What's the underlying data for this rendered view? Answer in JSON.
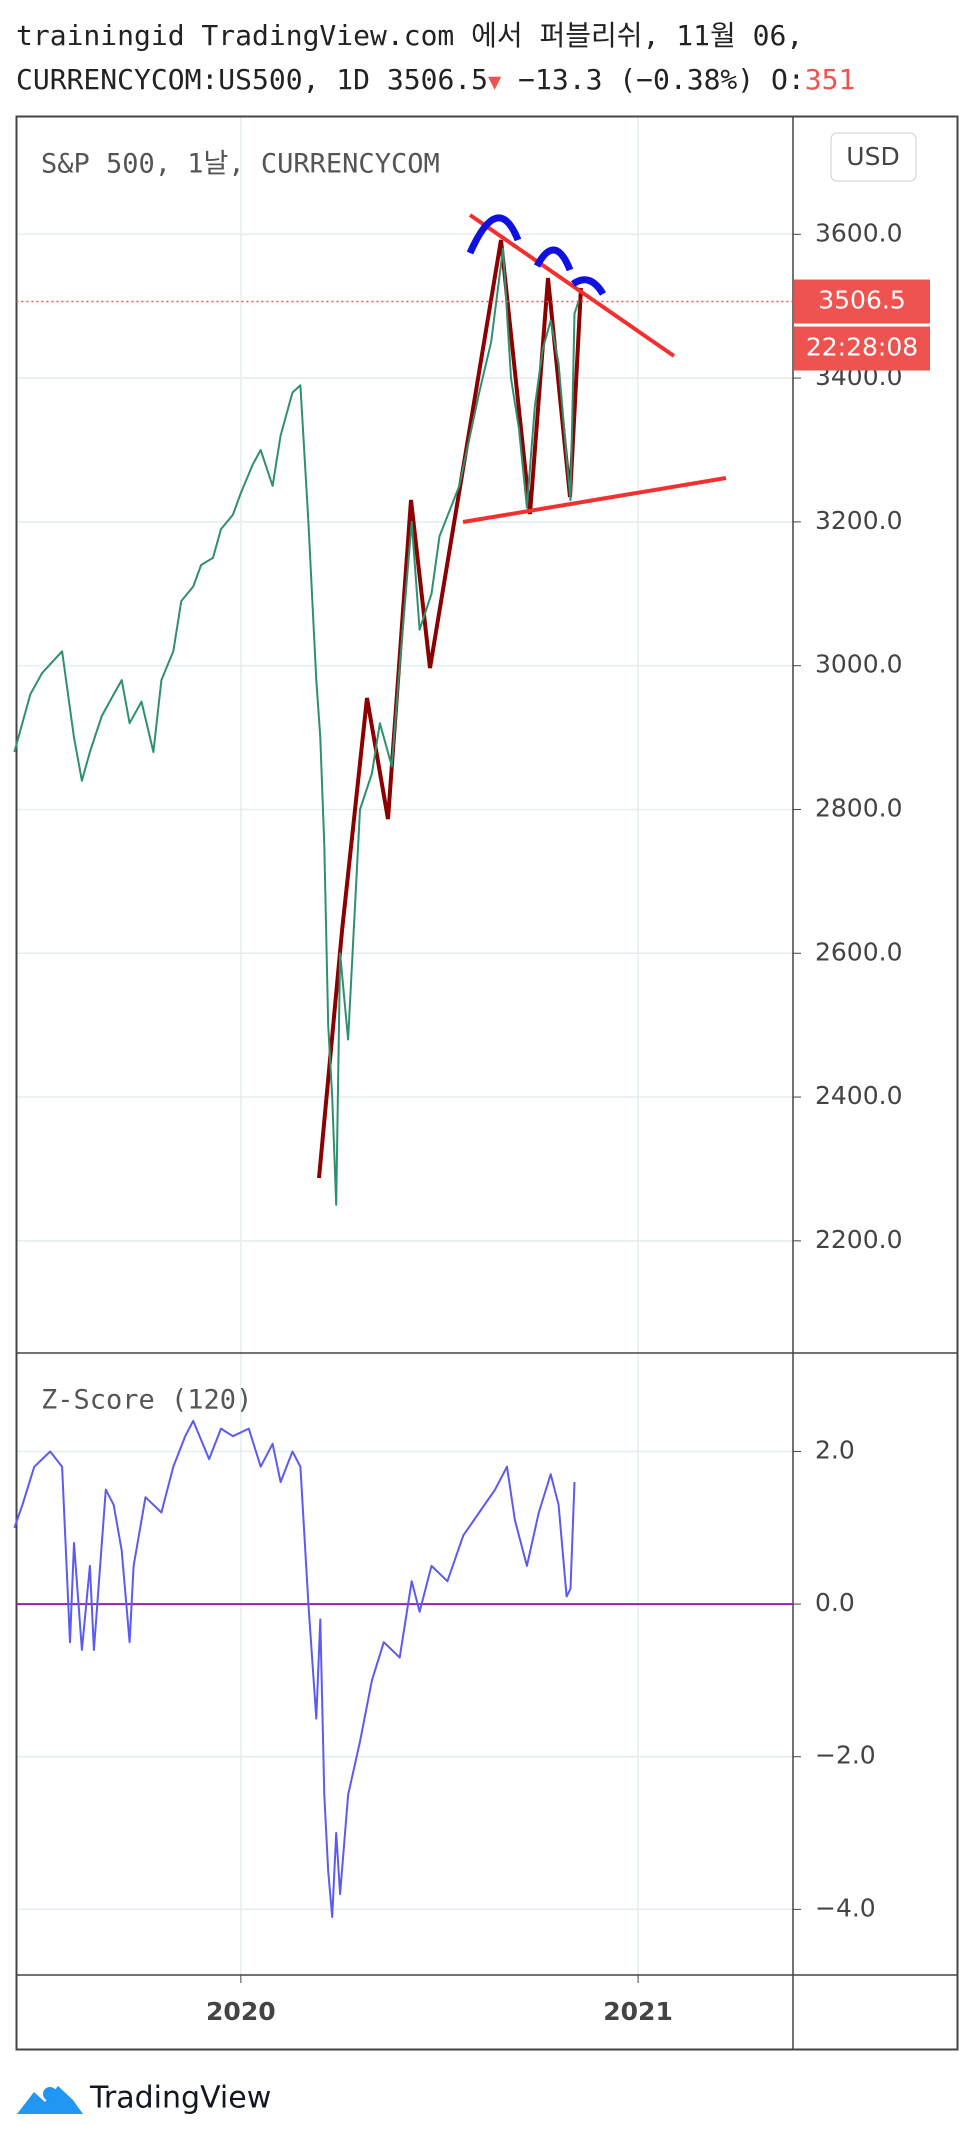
{
  "header": {
    "line1": "trainingid TradingView.com 에서 퍼블리쉬, 11월 06,",
    "symbol": "CURRENCYCOM:US500, 1D",
    "price": "3506.5",
    "change": "−13.3 (−0.38%)",
    "open_label": "O:",
    "open_value": "351"
  },
  "chart_data": [
    {
      "type": "line",
      "title": "S&P 500, 1날, CURRENCYCOM",
      "currency": "USD",
      "countdown": "22:28:08",
      "last_value": 3506.5,
      "x": [
        2019.43,
        2019.47,
        2019.5,
        2019.55,
        2019.58,
        2019.6,
        2019.62,
        2019.65,
        2019.68,
        2019.7,
        2019.72,
        2019.75,
        2019.78,
        2019.8,
        2019.83,
        2019.85,
        2019.88,
        2019.9,
        2019.93,
        2019.95,
        2019.98,
        2020.0,
        2020.03,
        2020.05,
        2020.08,
        2020.1,
        2020.12,
        2020.13,
        2020.15,
        2020.17,
        2020.19,
        2020.2,
        2020.21,
        2020.22,
        2020.23,
        2020.24,
        2020.25,
        2020.27,
        2020.3,
        2020.33,
        2020.35,
        2020.38,
        2020.4,
        2020.43,
        2020.45,
        2020.48,
        2020.5,
        2020.55,
        2020.6,
        2020.63,
        2020.66,
        2020.68,
        2020.7,
        2020.72,
        2020.74,
        2020.76,
        2020.78,
        2020.8,
        2020.82,
        2020.83,
        2020.84,
        2020.85
      ],
      "series": [
        {
          "color": "#2f8f6f",
          "values": [
            2880,
            2960,
            2990,
            3020,
            2900,
            2840,
            2880,
            2930,
            2960,
            2980,
            2920,
            2950,
            2880,
            2980,
            3020,
            3090,
            3110,
            3140,
            3150,
            3190,
            3210,
            3240,
            3280,
            3300,
            3250,
            3320,
            3360,
            3380,
            3390,
            3200,
            2980,
            2900,
            2750,
            2500,
            2400,
            2250,
            2600,
            2480,
            2800,
            2850,
            2920,
            2860,
            3000,
            3200,
            3050,
            3100,
            3180,
            3250,
            3380,
            3450,
            3580,
            3400,
            3330,
            3220,
            3360,
            3440,
            3480,
            3420,
            3290,
            3230,
            3490,
            3506.5
          ]
        }
      ],
      "xlim": [
        2019.435,
        2021.39
      ],
      "xticks": [
        2020,
        2021
      ],
      "ylim": [
        2044,
        3764
      ],
      "yticks": [
        {
          "value": 2200,
          "label": "2200.0"
        },
        {
          "value": 2400,
          "label": "2400.0"
        },
        {
          "value": 2600,
          "label": "2600.0"
        },
        {
          "value": 2800,
          "label": "2800.0"
        },
        {
          "value": 3000,
          "label": "3000.0"
        },
        {
          "value": 3200,
          "label": "3200.0"
        },
        {
          "value": 3400,
          "label": "3400.0"
        },
        {
          "value": 3600,
          "label": "3600.0"
        }
      ],
      "grid": true
    },
    {
      "type": "line",
      "title": "Z-Score (120)",
      "baseline": 0,
      "baseline_color": "#8e24aa",
      "x": [
        2019.43,
        2019.45,
        2019.48,
        2019.5,
        2019.52,
        2019.55,
        2019.57,
        2019.58,
        2019.6,
        2019.62,
        2019.63,
        2019.66,
        2019.68,
        2019.7,
        2019.72,
        2019.73,
        2019.76,
        2019.8,
        2019.83,
        2019.86,
        2019.88,
        2019.92,
        2019.95,
        2019.98,
        2020.02,
        2020.05,
        2020.08,
        2020.1,
        2020.13,
        2020.15,
        2020.17,
        2020.19,
        2020.2,
        2020.21,
        2020.22,
        2020.23,
        2020.24,
        2020.25,
        2020.27,
        2020.3,
        2020.33,
        2020.36,
        2020.4,
        2020.43,
        2020.45,
        2020.48,
        2020.52,
        2020.56,
        2020.6,
        2020.64,
        2020.67,
        2020.69,
        2020.72,
        2020.75,
        2020.78,
        2020.8,
        2020.82,
        2020.83,
        2020.84
      ],
      "series": [
        {
          "color": "#5b5bef",
          "values": [
            1.0,
            1.3,
            1.8,
            1.9,
            2.0,
            1.8,
            -0.5,
            0.8,
            -0.6,
            0.5,
            -0.6,
            1.5,
            1.3,
            0.7,
            -0.5,
            0.5,
            1.4,
            1.2,
            1.8,
            2.2,
            2.4,
            1.9,
            2.3,
            2.2,
            2.3,
            1.8,
            2.1,
            1.6,
            2.0,
            1.8,
            0.0,
            -1.5,
            -0.2,
            -2.5,
            -3.5,
            -4.1,
            -3.0,
            -3.8,
            -2.5,
            -1.8,
            -1.0,
            -0.5,
            -0.7,
            0.3,
            -0.1,
            0.5,
            0.3,
            0.9,
            1.2,
            1.5,
            1.8,
            1.1,
            0.5,
            1.2,
            1.7,
            1.3,
            0.1,
            0.2,
            1.6
          ]
        }
      ],
      "xlim": [
        2019.435,
        2021.39
      ],
      "xticks": [
        2020,
        2021
      ],
      "ylim": [
        -4.86,
        3.29
      ],
      "yticks": [
        {
          "value": 2,
          "label": "2.0"
        },
        {
          "value": 0,
          "label": "0.0"
        },
        {
          "value": -2,
          "label": "−2.0"
        },
        {
          "value": -4,
          "label": "−4.0"
        }
      ],
      "grid": true
    }
  ],
  "footer": {
    "brand": "TradingView"
  }
}
